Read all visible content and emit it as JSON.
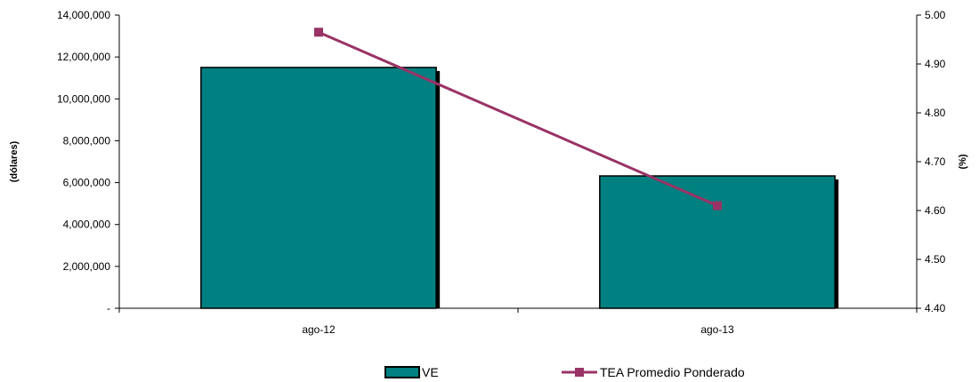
{
  "chart_data": {
    "type": "bar",
    "categories": [
      "ago-12",
      "ago-13"
    ],
    "series": [
      {
        "name": "VE",
        "kind": "bar",
        "axis": "left",
        "values": [
          11500000,
          6320000
        ],
        "color": "#008080"
      },
      {
        "name": "TEA Promedio Ponderado",
        "kind": "line",
        "axis": "right",
        "values": [
          4.965,
          4.61
        ],
        "color": "#993366"
      }
    ],
    "ylabel": "(dólares)",
    "y2label": "(%)",
    "ylim": [
      0,
      14000000
    ],
    "y2lim": [
      4.4,
      5.0
    ],
    "yticks": [
      "-",
      "2,000,000",
      "4,000,000",
      "6,000,000",
      "8,000,000",
      "10,000,000",
      "12,000,000",
      "14,000,000"
    ],
    "y2ticks": [
      "4.40",
      "4.50",
      "4.60",
      "4.70",
      "4.80",
      "4.90",
      "5.00"
    ],
    "grid": false,
    "legend_position": "bottom"
  }
}
